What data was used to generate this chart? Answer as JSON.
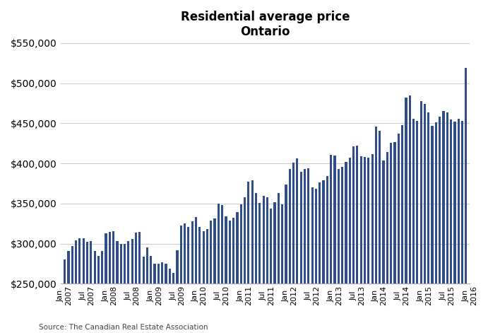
{
  "title_line1": "Residential average price",
  "title_line2": "Ontario",
  "bar_color": "#2e4d8a",
  "ylim": [
    250000,
    550000
  ],
  "yticks": [
    250000,
    300000,
    350000,
    400000,
    450000,
    500000,
    550000
  ],
  "source": "Source: The Canadian Real Estate Association",
  "values": [
    280000,
    291000,
    297000,
    304000,
    307000,
    307000,
    302000,
    303000,
    291000,
    285000,
    291000,
    313000,
    315000,
    316000,
    303000,
    300000,
    300000,
    303000,
    306000,
    314000,
    315000,
    284000,
    295000,
    285000,
    275000,
    275000,
    277000,
    275000,
    269000,
    264000,
    292000,
    323000,
    325000,
    321000,
    328000,
    333000,
    321000,
    316000,
    318000,
    329000,
    331000,
    350000,
    348000,
    334000,
    329000,
    332000,
    339000,
    349000,
    358000,
    377000,
    379000,
    363000,
    351000,
    360000,
    358000,
    344000,
    352000,
    363000,
    349000,
    374000,
    393000,
    401000,
    406000,
    390000,
    393000,
    394000,
    370000,
    368000,
    376000,
    379000,
    384000,
    411000,
    410000,
    393000,
    396000,
    402000,
    407000,
    421000,
    422000,
    409000,
    408000,
    407000,
    412000,
    446000,
    441000,
    404000,
    414000,
    426000,
    427000,
    437000,
    448000,
    482000,
    485000,
    456000,
    453000,
    478000,
    474000,
    464000,
    447000,
    451000,
    458000,
    465000,
    464000,
    455000,
    452000,
    456000,
    453000,
    519000
  ],
  "x_tick_labels": [
    "Jan\n2007",
    "Jul\n2007",
    "Jan\n2008",
    "Jul\n2008",
    "Jan\n2009",
    "Jul\n2009",
    "Jan\n2010",
    "Jul\n2010",
    "Jan\n2011",
    "Jul\n2011",
    "Jan\n2012",
    "Jul\n2012",
    "Jan\n2013",
    "Jul\n2013",
    "Jan\n2014",
    "Jul\n2014",
    "Jan\n2015",
    "Jul\n2015",
    "Jan\n2016"
  ],
  "x_tick_positions": [
    0,
    6,
    12,
    18,
    24,
    30,
    36,
    42,
    48,
    54,
    60,
    66,
    72,
    78,
    84,
    90,
    96,
    102,
    108
  ],
  "figsize": [
    6.91,
    4.71
  ],
  "dpi": 100
}
